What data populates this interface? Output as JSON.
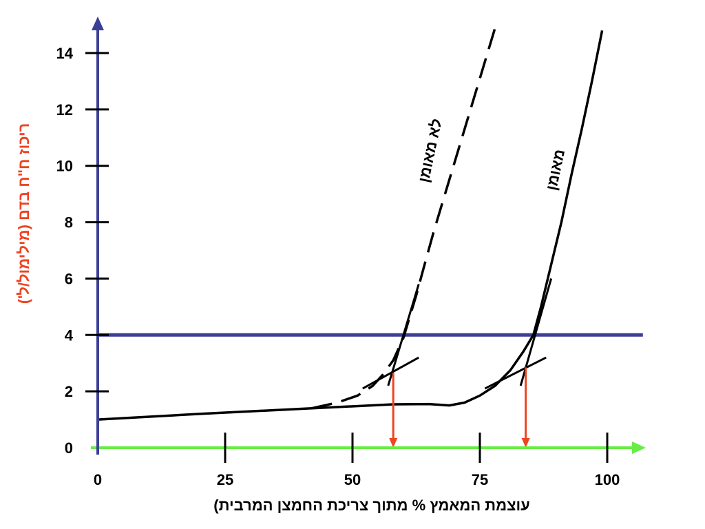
{
  "chart_data": {
    "type": "line",
    "xlabel": "עוצמת המאמץ % מתוך צריכת החמצן המרבית)",
    "ylabel": "ריכוז ח\"ח בדם (מילימול/ל')",
    "xlim": [
      0,
      107
    ],
    "ylim": [
      0,
      15
    ],
    "x_ticks": [
      0,
      25,
      50,
      75,
      100
    ],
    "y_ticks": [
      0,
      2,
      4,
      6,
      8,
      10,
      12,
      14
    ],
    "grid": false,
    "colors": {
      "x_axis": "#66ee44",
      "y_axis": "#3b3f96",
      "threshold_line": "#3b3f96",
      "arrows": "#ee4422",
      "ylabel": "#ee4422",
      "curves": "#000000"
    },
    "series": [
      {
        "name": "לא מאומן",
        "style": "dashed",
        "x": [
          42,
          47,
          51,
          54,
          56,
          58,
          60,
          61,
          62.5,
          64,
          66,
          68,
          70,
          72,
          74,
          76,
          78
        ],
        "y": [
          1.4,
          1.6,
          1.85,
          2.2,
          2.6,
          3.1,
          3.9,
          4.5,
          5.4,
          6.4,
          7.7,
          8.9,
          10.1,
          11.3,
          12.5,
          13.7,
          14.9
        ]
      },
      {
        "name": "מאומן",
        "style": "solid",
        "x": [
          0,
          20,
          40,
          58,
          65,
          69,
          72,
          75,
          78,
          81,
          83.5,
          85.5,
          87,
          89,
          91,
          93,
          95,
          97,
          99
        ],
        "y": [
          1.0,
          1.2,
          1.38,
          1.54,
          1.55,
          1.5,
          1.6,
          1.85,
          2.2,
          2.75,
          3.4,
          4.0,
          5.0,
          6.5,
          8.0,
          9.7,
          11.3,
          13.0,
          14.8
        ]
      }
    ],
    "horizontal_line": {
      "y": 4
    },
    "arrows": [
      {
        "from": [
          58,
          2.65
        ],
        "to": [
          58,
          0
        ]
      },
      {
        "from": [
          84,
          2.85
        ],
        "to": [
          84,
          0
        ]
      }
    ],
    "tangent_lines": [
      {
        "from": [
          52,
          2.1
        ],
        "to": [
          63,
          3.2
        ]
      },
      {
        "from": [
          76,
          2.1
        ],
        "to": [
          88,
          3.2
        ]
      }
    ],
    "steep_tangents": [
      {
        "from": [
          57,
          2.2
        ],
        "to": [
          63,
          5.8
        ]
      },
      {
        "from": [
          83,
          2.2
        ],
        "to": [
          89,
          6.0
        ]
      }
    ]
  }
}
